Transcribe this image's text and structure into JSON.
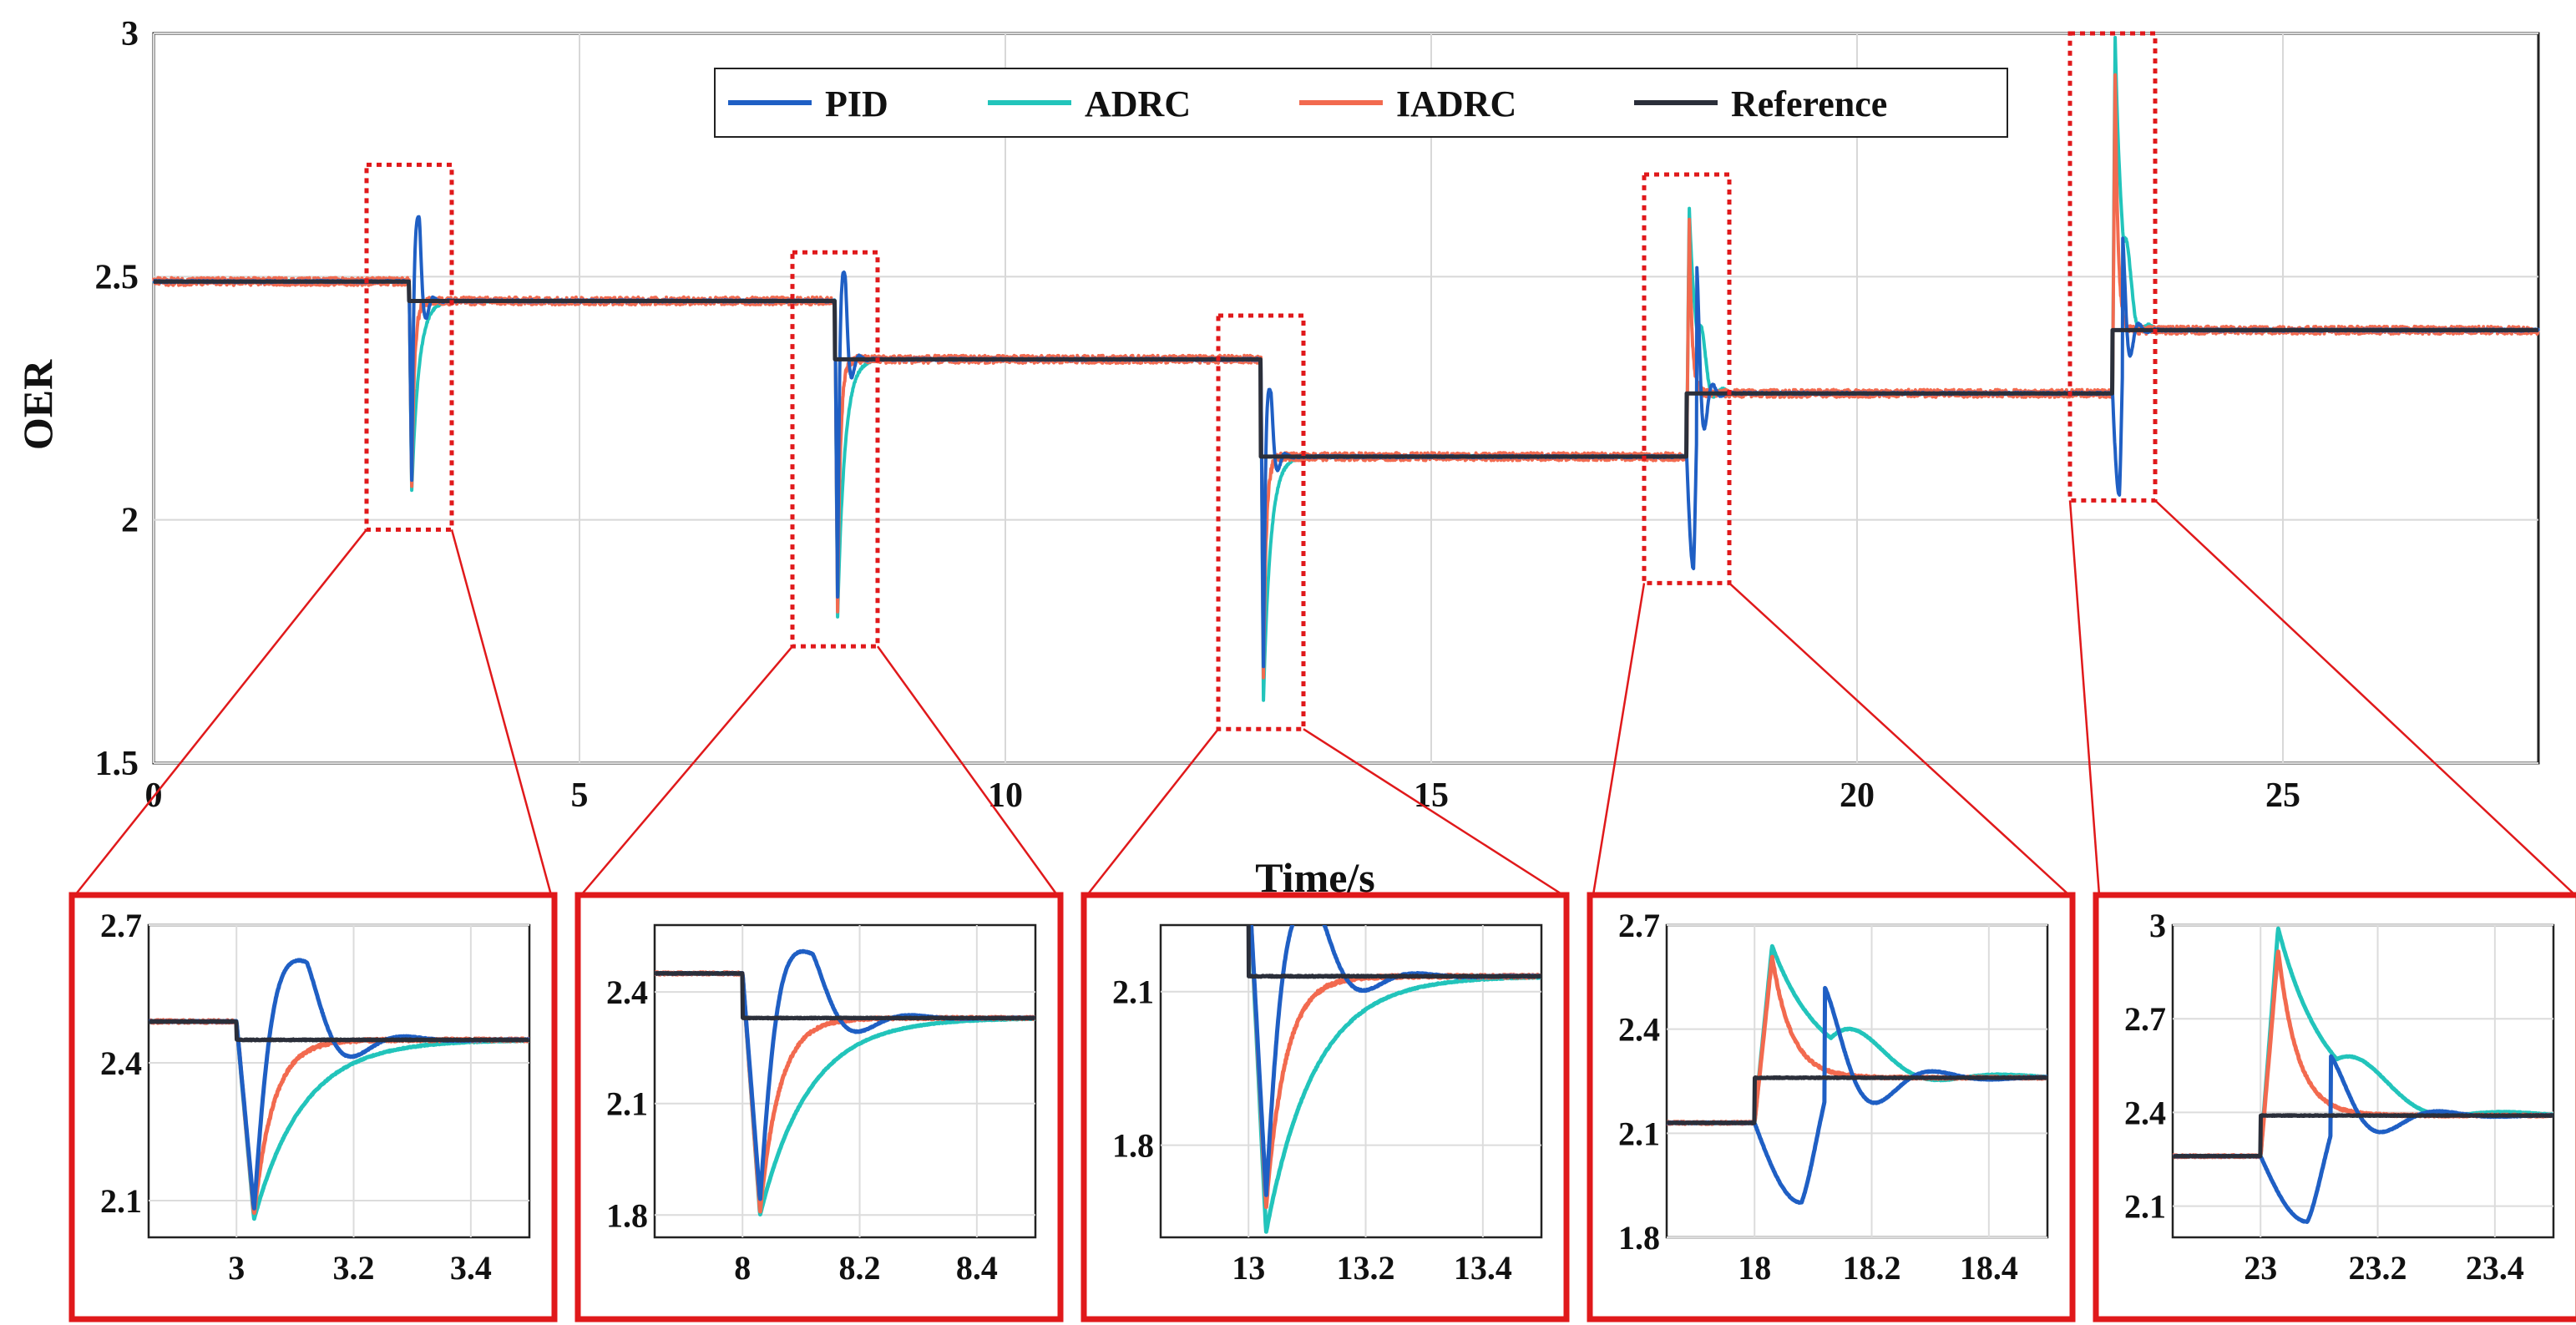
{
  "chart_data": {
    "type": "line",
    "xlabel": "Time/s",
    "ylabel": "OER",
    "xlim": [
      0,
      28
    ],
    "ylim": [
      1.5,
      3
    ],
    "xticks": [
      0,
      5,
      10,
      15,
      20,
      25
    ],
    "yticks": [
      1.5,
      2,
      2.5,
      3
    ],
    "grid": true,
    "legend_position": "top-center",
    "colors": {
      "PID": "#1f5fc4",
      "ADRC": "#22c4bb",
      "IADRC": "#f26a4f",
      "Reference": "#2b2f3a",
      "zoom": "#e0191b"
    },
    "series": [
      {
        "name": "PID"
      },
      {
        "name": "ADRC"
      },
      {
        "name": "IADRC"
      },
      {
        "name": "Reference"
      }
    ],
    "reference_steps": [
      {
        "t": 0,
        "value": 2.49
      },
      {
        "t": 3,
        "value": 2.45
      },
      {
        "t": 8,
        "value": 2.33
      },
      {
        "t": 13,
        "value": 2.13
      },
      {
        "t": 18,
        "value": 2.26
      },
      {
        "t": 23,
        "value": 2.39
      }
    ],
    "responses": [
      {
        "t": 3,
        "PID": {
          "dip": 2.08,
          "peak": 2.61
        },
        "ADRC": {
          "dip": 2.06
        },
        "IADRC": {
          "dip": 2.07
        }
      },
      {
        "t": 8,
        "PID": {
          "dip": 1.84,
          "peak": 2.49
        },
        "ADRC": {
          "dip": 1.8
        },
        "IADRC": {
          "dip": 1.81
        }
      },
      {
        "t": 13,
        "PID": {
          "dip": 1.7,
          "peak": 2.25
        },
        "ADRC": {
          "dip": 1.63
        },
        "IADRC": {
          "dip": 1.68
        }
      },
      {
        "t": 18,
        "PID": {
          "dip": 1.9,
          "peak": 2.52
        },
        "ADRC": {
          "peak": 2.64
        },
        "IADRC": {
          "peak": 2.61
        }
      },
      {
        "t": 23,
        "PID": {
          "dip": 2.05,
          "peak": 2.58
        },
        "ADRC": {
          "peak": 2.99
        },
        "IADRC": {
          "peak": 2.92
        }
      }
    ],
    "zoom_boxes": [
      {
        "xlim": [
          2.5,
          3.5
        ],
        "ylim": [
          1.98,
          2.73
        ]
      },
      {
        "xlim": [
          7.5,
          8.5
        ],
        "ylim": [
          1.74,
          2.55
        ]
      },
      {
        "xlim": [
          12.5,
          13.5
        ],
        "ylim": [
          1.57,
          2.42
        ]
      },
      {
        "xlim": [
          17.5,
          18.5
        ],
        "ylim": [
          1.87,
          2.71
        ]
      },
      {
        "xlim": [
          22.5,
          23.5
        ],
        "ylim": [
          2.04,
          3.0
        ]
      }
    ],
    "insets": [
      {
        "xlim": [
          2.85,
          3.5
        ],
        "ylim": [
          2.02,
          2.7
        ],
        "xticks": [
          "3",
          "3.2",
          "3.4"
        ],
        "xtick_vals": [
          3,
          3.2,
          3.4
        ],
        "yticks": [
          "2.1",
          "2.4",
          "2.7"
        ],
        "ytick_vals": [
          2.1,
          2.4,
          2.7
        ]
      },
      {
        "xlim": [
          7.85,
          8.5
        ],
        "ylim": [
          1.74,
          2.58
        ],
        "xticks": [
          "8",
          "8.2",
          "8.4"
        ],
        "xtick_vals": [
          8,
          8.2,
          8.4
        ],
        "yticks": [
          "1.8",
          "2.1",
          "2.4"
        ],
        "ytick_vals": [
          1.8,
          2.1,
          2.4
        ]
      },
      {
        "xlim": [
          12.85,
          13.5
        ],
        "ylim": [
          1.62,
          2.23
        ],
        "xticks": [
          "13",
          "13.2",
          "13.4"
        ],
        "xtick_vals": [
          13,
          13.2,
          13.4
        ],
        "yticks": [
          "1.8",
          "2.1"
        ],
        "ytick_vals": [
          1.8,
          2.1
        ]
      },
      {
        "xlim": [
          17.85,
          18.5
        ],
        "ylim": [
          1.8,
          2.7
        ],
        "xticks": [
          "18",
          "18.2",
          "18.4"
        ],
        "xtick_vals": [
          18,
          18.2,
          18.4
        ],
        "yticks": [
          "1.8",
          "2.1",
          "2.4",
          "2.7"
        ],
        "ytick_vals": [
          1.8,
          2.1,
          2.4,
          2.7
        ]
      },
      {
        "xlim": [
          22.85,
          23.5
        ],
        "ylim": [
          2.0,
          3.0
        ],
        "xticks": [
          "23",
          "23.2",
          "23.4"
        ],
        "xtick_vals": [
          23,
          23.2,
          23.4
        ],
        "yticks": [
          "2.1",
          "2.4",
          "2.7",
          "3"
        ],
        "ytick_vals": [
          2.1,
          2.4,
          2.7,
          3
        ]
      }
    ]
  }
}
